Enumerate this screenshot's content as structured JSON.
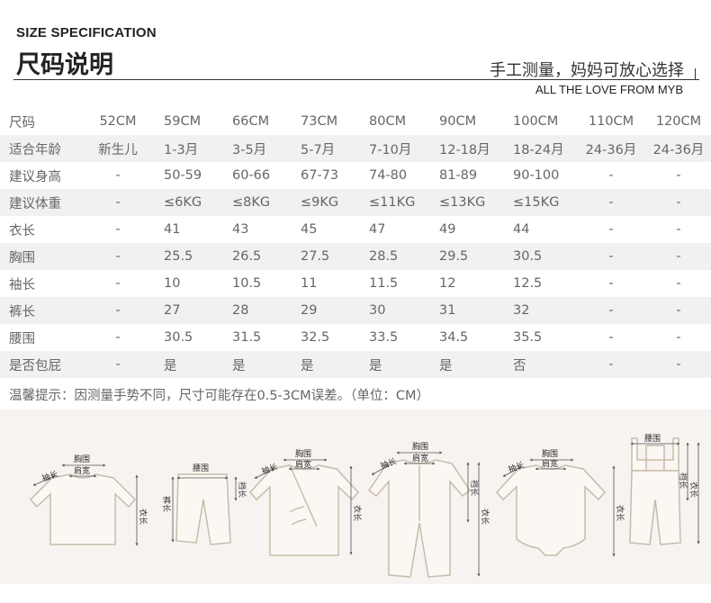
{
  "header": {
    "title_en": "SIZE SPECIFICATION",
    "title_zh": "尺码说明",
    "slogan_zh": "手工测量，妈妈可放心选择",
    "slogan_en": "ALL THE LOVE FROM MYB"
  },
  "table": {
    "rows": [
      {
        "label": "尺码",
        "cells": [
          "52CM",
          "59CM",
          "66CM",
          "73CM",
          "80CM",
          "90CM",
          "100CM",
          "110CM",
          "120CM"
        ]
      },
      {
        "label": "适合年龄",
        "cells": [
          "新生儿",
          "1-3月",
          "3-5月",
          "5-7月",
          "7-10月",
          "12-18月",
          "18-24月",
          "24-36月",
          "24-36月"
        ]
      },
      {
        "label": "建议身高",
        "cells": [
          "-",
          "50-59",
          "60-66",
          "67-73",
          "74-80",
          "81-89",
          "90-100",
          "-",
          "-"
        ]
      },
      {
        "label": "建议体重",
        "cells": [
          "-",
          "≤6KG",
          "≤8KG",
          "≤9KG",
          "≤11KG",
          "≤13KG",
          "≤15KG",
          "-",
          "-"
        ]
      },
      {
        "label": "衣长",
        "cells": [
          "-",
          "41",
          "43",
          "45",
          "47",
          "49",
          "44",
          "-",
          "-"
        ]
      },
      {
        "label": "胸围",
        "cells": [
          "-",
          "25.5",
          "26.5",
          "27.5",
          "28.5",
          "29.5",
          "30.5",
          "-",
          "-"
        ]
      },
      {
        "label": "袖长",
        "cells": [
          "-",
          "10",
          "10.5",
          "11",
          "11.5",
          "12",
          "12.5",
          "-",
          "-"
        ]
      },
      {
        "label": "裤长",
        "cells": [
          "-",
          "27",
          "28",
          "29",
          "30",
          "31",
          "32",
          "-",
          "-"
        ]
      },
      {
        "label": "腰围",
        "cells": [
          "-",
          "30.5",
          "31.5",
          "32.5",
          "33.5",
          "34.5",
          "35.5",
          "-",
          "-"
        ]
      },
      {
        "label": "是否包屁",
        "cells": [
          "-",
          "是",
          "是",
          "是",
          "是",
          "是",
          "否",
          "-",
          "-"
        ]
      }
    ]
  },
  "note": "温馨提示：因测量手势不同，尺寸可能存在0.5-3CM误差。（单位：CM）",
  "illustrations": {
    "labels": {
      "chest": "胸围",
      "shoulder": "肩宽",
      "sleeve": "袖长",
      "length": "衣长",
      "waist": "腰围",
      "pants_length": "裤长",
      "crotch": "裆长"
    },
    "garments": [
      "long-sleeve-top",
      "pants",
      "wrap-top",
      "romper",
      "bodysuit",
      "overalls"
    ]
  },
  "colors": {
    "text": "#666666",
    "heading": "#222222",
    "row_alt": "#f1f1f1",
    "illus_bg": "#f6f3f0",
    "garment_fill": "#fbf8f4",
    "garment_stroke": "#c9bba9"
  }
}
